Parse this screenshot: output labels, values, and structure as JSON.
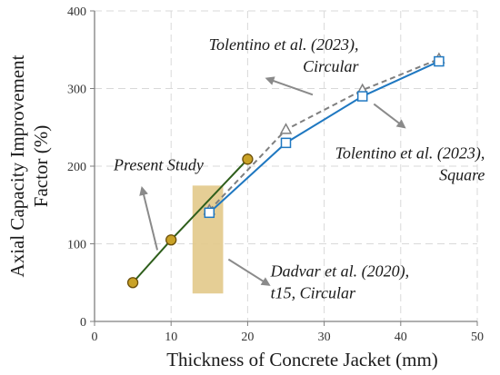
{
  "chart_data": {
    "type": "line",
    "title": "",
    "xlabel": "Thickness of Concrete Jacket (mm)",
    "ylabel_lines": [
      "Axial Capacity Improvement",
      "Factor (%)"
    ],
    "xlim": [
      0,
      50
    ],
    "ylim": [
      0,
      400
    ],
    "x_ticks": [
      "0",
      "10",
      "20",
      "30",
      "40",
      "50"
    ],
    "y_ticks": [
      "0",
      "100",
      "200",
      "300",
      "400"
    ],
    "grid": true,
    "series": [
      {
        "key": "present",
        "color": "#2e5e1b",
        "marker": "circle",
        "marker_fill": "#c9a227",
        "dashed": false,
        "points": [
          [
            5,
            50
          ],
          [
            10,
            105
          ],
          [
            20,
            209
          ]
        ]
      },
      {
        "key": "circular",
        "color": "#7f7f7f",
        "marker": "triangle",
        "marker_fill": "#ffffff",
        "dashed": true,
        "points": [
          [
            15,
            143
          ],
          [
            25,
            247
          ],
          [
            35,
            298
          ],
          [
            45,
            338
          ]
        ]
      },
      {
        "key": "square",
        "color": "#1f78c1",
        "marker": "square",
        "marker_fill": "#ffffff",
        "dashed": false,
        "points": [
          [
            15,
            140
          ],
          [
            25,
            230
          ],
          [
            35,
            290
          ],
          [
            45,
            335
          ]
        ]
      }
    ],
    "region": {
      "x0": 12.8,
      "x1": 16.8,
      "y0": 36,
      "y1": 175,
      "color": "#e2c98a"
    },
    "annotations": [
      {
        "key": "circ",
        "lines": [
          "Tolentino et al. (2023),",
          "Circular"
        ],
        "anchor": "end",
        "tx": 34.5,
        "ty": 350,
        "arrow_from": [
          28.5,
          292
        ],
        "arrow_to": [
          22.5,
          313
        ]
      },
      {
        "key": "sq",
        "lines": [
          "Tolentino et al. (2023),",
          "Square"
        ],
        "anchor": "end",
        "tx": 51,
        "ty": 210,
        "arrow_from": [
          36.5,
          280
        ],
        "arrow_to": [
          40.5,
          250
        ]
      },
      {
        "key": "present",
        "lines": [
          "Present Study"
        ],
        "anchor": "start",
        "tx": 2.5,
        "ty": 195,
        "arrow_from": [
          8.2,
          92
        ],
        "arrow_to": [
          6.2,
          172
        ]
      },
      {
        "key": "dadvar",
        "lines": [
          "Dadvar et al. (2020),",
          "t15, Circular"
        ],
        "anchor": "start",
        "tx": 23,
        "ty": 58,
        "arrow_from": [
          17.5,
          80
        ],
        "arrow_to": [
          22.8,
          47
        ]
      }
    ]
  }
}
